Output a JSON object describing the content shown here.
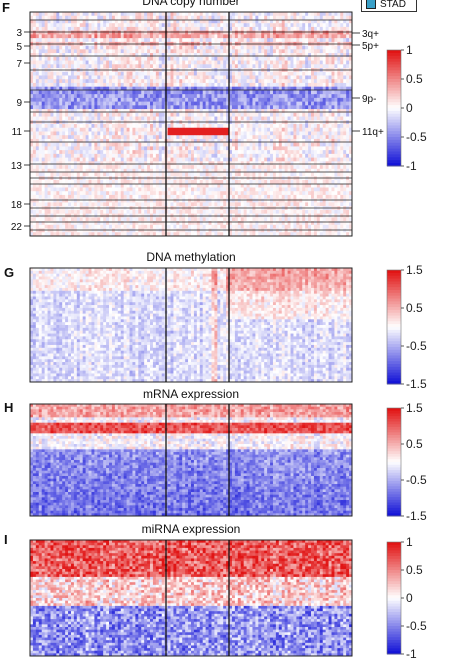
{
  "legend": {
    "label": "STAD",
    "color": "#3aa0c8"
  },
  "chart_data": [
    {
      "type": "heatmap",
      "panel": "F",
      "title": "DNA copy number",
      "row_labels": [
        "3",
        "5",
        "7",
        "9",
        "11",
        "13",
        "18",
        "22"
      ],
      "annotations": [
        "3q+",
        "5p+",
        "9p-",
        "11q+"
      ],
      "colorbar": {
        "ticks": [
          "1",
          "0.5",
          "0",
          "-0.5",
          "-1"
        ],
        "min": -1,
        "max": 1
      }
    },
    {
      "type": "heatmap",
      "panel": "G",
      "title": "DNA methylation",
      "colorbar": {
        "ticks": [
          "1.5",
          "0.5",
          "-0.5",
          "-1.5"
        ],
        "min": -1.5,
        "max": 1.5
      }
    },
    {
      "type": "heatmap",
      "panel": "H",
      "title": "mRNA expression",
      "colorbar": {
        "ticks": [
          "1.5",
          "0.5",
          "-0.5",
          "-1.5"
        ],
        "min": -1.5,
        "max": 1.5
      }
    },
    {
      "type": "heatmap",
      "panel": "I",
      "title": "miRNA expression",
      "colorbar": {
        "ticks": [
          "1",
          "0.5",
          "0",
          "-0.5",
          "-1"
        ],
        "min": -1,
        "max": 1
      }
    }
  ]
}
